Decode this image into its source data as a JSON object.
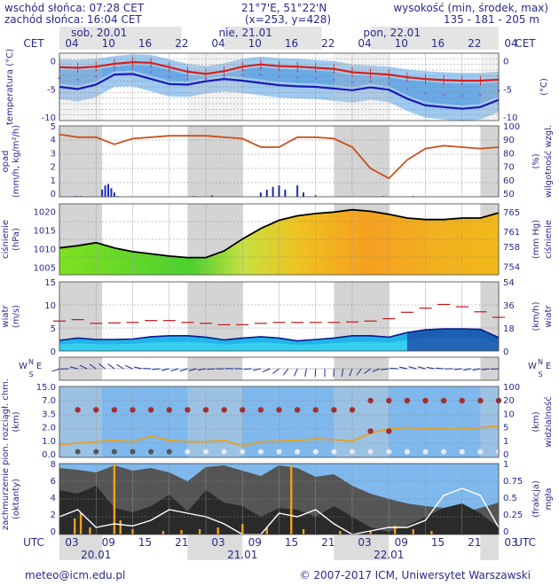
{
  "header": {
    "sunrise": "wschód słońca: 07:28 CET",
    "sunset": "zachód słońca: 16:04 CET",
    "coords": "21°7'E, 51°22'N",
    "grid": "(x=253, y=428)",
    "altitude_label": "wysokość (min, środek, max)",
    "altitude_values": "135 - 181 - 205 m"
  },
  "footer": {
    "email": "meteo@icm.edu.pl",
    "copyright": "© 2007-2017 ICM, Uniwersytet Warszawski"
  },
  "time_axis": {
    "top_zone": "CET",
    "top_hours": [
      "04",
      "10",
      "16",
      "22",
      "04",
      "10",
      "16",
      "22",
      "04",
      "10",
      "16",
      "22",
      "04"
    ],
    "days_top": [
      "sob, 20.01",
      "nie, 21.01",
      "pon, 22.01"
    ],
    "bottom_zone": "UTC",
    "bottom_hours": [
      "03",
      "09",
      "15",
      "21",
      "03",
      "09",
      "15",
      "21",
      "03",
      "09",
      "15",
      "21",
      "03"
    ],
    "days_bottom": [
      "20.01",
      "21.01",
      "22.01"
    ]
  },
  "colors": {
    "text": "#2a2a8c",
    "night_band": "#d4d4d4",
    "temp_line": "#d42020",
    "dewpoint_line": "#1a1ab4",
    "humidity_line": "#c8501e",
    "visibility_line": "#e8a020",
    "gust_line": "#c01818",
    "pressure_line": "#000000",
    "sky_blue": "#7fb8ec"
  },
  "chart_data": [
    {
      "type": "line",
      "name": "temperature",
      "ylabel_left": "temperatura (°C)",
      "ticks_left": [
        "0",
        "-5",
        "-10"
      ],
      "ticks_right": [
        "0",
        "-5",
        "-10"
      ],
      "ylabel_right": "(°C)",
      "ylim": [
        -10,
        2
      ],
      "t_hours": [
        0,
        3,
        6,
        9,
        12,
        15,
        18,
        21,
        24,
        27,
        30,
        33,
        36,
        39,
        42,
        45,
        48,
        51,
        54,
        57,
        60,
        63,
        66,
        69,
        72
      ],
      "series": [
        {
          "values": [
            -0.5,
            -0.6,
            -0.4,
            0.1,
            0.4,
            0.3,
            -0.5,
            -1.3,
            -1.7,
            -1.2,
            -0.4,
            0.0,
            -0.3,
            -0.4,
            -0.6,
            -0.8,
            -1.4,
            -1.6,
            -1.8,
            -2.3,
            -2.6,
            -2.8,
            -2.9,
            -2.9,
            -2.7
          ]
        },
        {
          "values": [
            -4.0,
            -4.4,
            -3.6,
            -1.8,
            -1.7,
            -2.6,
            -3.5,
            -3.6,
            -3.0,
            -2.6,
            -2.9,
            -3.3,
            -3.7,
            -3.9,
            -4.0,
            -4.3,
            -4.6,
            -4.1,
            -4.5,
            -6.1,
            -7.3,
            -7.6,
            -7.9,
            -7.6,
            -6.3
          ]
        }
      ]
    },
    {
      "type": "bar",
      "name": "precipitation-humidity",
      "ylabel_left": "opad (mm/h, kg/m²/h)",
      "ticks_left": [
        "5",
        "4",
        "3",
        "2",
        "1",
        "0"
      ],
      "ylabel_right": "wilgotność wzgl. (%)",
      "ticks_right": [
        "100",
        "90",
        "80",
        "70",
        "60",
        "50"
      ],
      "ylim": [
        0,
        5
      ],
      "y2lim": [
        50,
        100
      ],
      "humidity_t": [
        0,
        3,
        6,
        9,
        12,
        15,
        18,
        21,
        24,
        27,
        30,
        33,
        36,
        39,
        42,
        45,
        48,
        51,
        54,
        57,
        60,
        63,
        66,
        69,
        72
      ],
      "humidity": [
        94,
        92,
        92,
        87,
        91,
        92,
        93,
        93,
        93,
        92,
        91,
        85,
        85,
        92,
        92,
        91,
        85,
        70,
        63,
        76,
        84,
        86,
        85,
        84,
        85
      ],
      "precip_t": [
        2.5,
        3,
        3.5,
        7,
        7.5,
        8,
        8.5,
        9,
        9.5,
        22,
        25,
        33,
        34,
        35,
        36,
        37,
        39,
        40,
        42,
        53,
        58
      ],
      "precip": [
        0.05,
        0.05,
        0.05,
        0.5,
        0.8,
        0.9,
        0.6,
        0.3,
        0.05,
        0.05,
        0.1,
        0.3,
        0.5,
        0.7,
        0.8,
        0.5,
        0.8,
        0.3,
        0.1,
        0.05,
        0.05
      ]
    },
    {
      "type": "area",
      "name": "pressure",
      "ylabel_left": "ciśnienie (hPa)",
      "ticks_left": [
        "1020",
        "1015",
        "1010",
        "1005"
      ],
      "ylabel_right": "(mm Hg) ciśnienie",
      "ticks_right": [
        "765",
        "761",
        "758",
        "754"
      ],
      "ylim": [
        1003,
        1022
      ],
      "t_hours": [
        0,
        3,
        6,
        9,
        12,
        15,
        18,
        21,
        24,
        27,
        30,
        33,
        36,
        39,
        42,
        45,
        48,
        51,
        54,
        57,
        60,
        63,
        66,
        69,
        72
      ],
      "values": [
        1010.2,
        1010.8,
        1011.6,
        1010.2,
        1009.2,
        1008.6,
        1008.0,
        1007.6,
        1007.6,
        1009.4,
        1012.6,
        1015.4,
        1017.6,
        1018.8,
        1019.4,
        1019.8,
        1020.4,
        1020.0,
        1019.2,
        1018.2,
        1017.8,
        1017.8,
        1018.2,
        1018.2,
        1019.6
      ]
    },
    {
      "type": "line",
      "name": "wind",
      "ylabel_left": "wiatr (m/s)",
      "ticks_left": [
        "15",
        "10",
        "5",
        "0"
      ],
      "ylabel_right": "(km/h) wiatr",
      "ticks_right": [
        "54",
        "36",
        "18",
        "0"
      ],
      "ylim": [
        0,
        15
      ],
      "t_hours": [
        0,
        3,
        6,
        9,
        12,
        15,
        18,
        21,
        24,
        27,
        30,
        33,
        36,
        39,
        42,
        45,
        48,
        51,
        54,
        57,
        60,
        63,
        66,
        69,
        72
      ],
      "speed": [
        2.3,
        2.8,
        2.5,
        2.5,
        2.6,
        3.1,
        3.3,
        3.3,
        3.0,
        2.4,
        2.8,
        3.1,
        2.8,
        2.2,
        2.5,
        2.8,
        3.3,
        3.3,
        3.0,
        4.0,
        4.6,
        4.8,
        4.8,
        4.7,
        2.9
      ],
      "gust": [
        6.5,
        6.8,
        6.0,
        6.1,
        6.2,
        6.6,
        6.6,
        6.2,
        6.0,
        5.7,
        5.7,
        6.0,
        6.2,
        6.2,
        6.2,
        6.2,
        6.3,
        6.5,
        7.0,
        8.4,
        9.3,
        10.1,
        9.6,
        8.5,
        7.3
      ]
    },
    {
      "type": "scatter",
      "name": "wind-direction",
      "ylabel_left": "WNSE",
      "ylabel_right": "WNSE"
    },
    {
      "type": "line",
      "name": "visibility-cloudbase",
      "ylabel_left": "pion. rozciągł. chm. (km)",
      "ticks_left": [
        "15.0",
        "7.0",
        "3.5",
        "2.0",
        "1.0",
        "0.0"
      ],
      "ylabel_right": "widzialność (km)",
      "ticks_right": [
        "100",
        "20",
        "10",
        "5",
        "1",
        "0"
      ],
      "t_hours": [
        0,
        3,
        6,
        9,
        12,
        15,
        18,
        21,
        24,
        27,
        30,
        33,
        36,
        39,
        42,
        45,
        48,
        51,
        54,
        57,
        60,
        63,
        66,
        69,
        72
      ],
      "visibility_frac": [
        0.18,
        0.2,
        0.22,
        0.24,
        0.22,
        0.3,
        0.24,
        0.22,
        0.22,
        0.24,
        0.16,
        0.22,
        0.23,
        0.24,
        0.26,
        0.25,
        0.23,
        0.34,
        0.4,
        0.42,
        0.41,
        0.4,
        0.4,
        0.42,
        0.44
      ]
    },
    {
      "type": "area",
      "name": "cloudiness-fog",
      "ylabel_left": "zachmurzenie (oktanty)",
      "ticks_left": [
        "8",
        "6",
        "4",
        "2",
        "0"
      ],
      "ylabel_right": "(frakcja) mgła",
      "ticks_right": [
        "1",
        "0.75",
        "0.5",
        "0.25",
        "0"
      ],
      "ylim": [
        0,
        8
      ],
      "t_hours": [
        0,
        3,
        6,
        9,
        12,
        15,
        18,
        21,
        24,
        27,
        30,
        33,
        36,
        39,
        42,
        45,
        48,
        51,
        54,
        57,
        60,
        63,
        66,
        69,
        72
      ],
      "total_cloud": [
        7.5,
        7.3,
        7.0,
        7.8,
        7.2,
        7.5,
        7.0,
        6.0,
        7.6,
        7.8,
        7.2,
        6.6,
        7.8,
        7.5,
        6.5,
        6.8,
        5.5,
        4.6,
        4.0,
        3.5,
        3.2,
        3.0,
        2.4,
        3.0,
        3.6
      ],
      "low_cloud": [
        5.0,
        4.6,
        5.5,
        3.0,
        2.5,
        3.2,
        4.5,
        2.6,
        5.0,
        3.6,
        3.2,
        2.0,
        3.0,
        2.8,
        2.0,
        3.2,
        2.0,
        0.8,
        0.3,
        1.0,
        2.0,
        3.0,
        3.5,
        2.4,
        0.8
      ],
      "fog": [
        0.25,
        0.35,
        0.1,
        0.15,
        0.12,
        0.2,
        0.35,
        0.3,
        0.25,
        0.15,
        0.0,
        0.0,
        0.3,
        0.25,
        0.35,
        0.15,
        0.0,
        0.05,
        0.1,
        0.1,
        0.2,
        0.55,
        0.65,
        0.55,
        0.1
      ]
    }
  ]
}
